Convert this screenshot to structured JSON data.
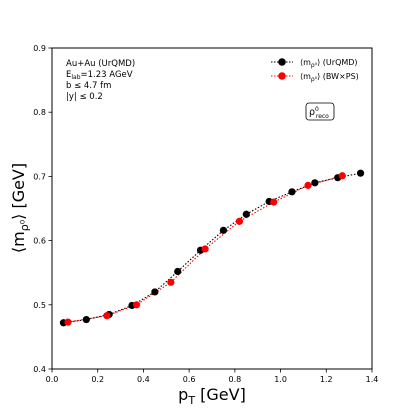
{
  "chart_data": {
    "type": "line",
    "xlabel": "p",
    "xlabel_sub": "T",
    "xlabel_unit": " [GeV]",
    "ylabel": "⟨m",
    "ylabel_sub": "ρ⁰",
    "ylabel_unit": "⟩ [GeV]",
    "xlim": [
      0.0,
      1.4
    ],
    "ylim": [
      0.4,
      0.9
    ],
    "xticks": [
      "0.0",
      "0.2",
      "0.4",
      "0.6",
      "0.8",
      "1.0",
      "1.2",
      "1.4"
    ],
    "yticks": [
      "0.4",
      "0.5",
      "0.6",
      "0.7",
      "0.8",
      "0.9"
    ],
    "grid": false,
    "legend_position": "top-right",
    "annotations": {
      "system": "Au+Au (UrQMD)",
      "elab_prefix": "E",
      "elab_sub": "lab",
      "elab_value": "=1.23 AGeV",
      "impact": "b ≤ 4.7 fm",
      "rapidity": "|y| ≤ 0.2",
      "tag": "ρ",
      "tag_sup": "0",
      "tag_sub": "reco"
    },
    "series": [
      {
        "name": "⟨m",
        "name_sub": "ρ⁰",
        "name_rest": "⟩ (UrQMD)",
        "color": "#000000",
        "x": [
          0.05,
          0.15,
          0.25,
          0.35,
          0.45,
          0.55,
          0.65,
          0.75,
          0.85,
          0.95,
          1.05,
          1.15,
          1.25,
          1.35
        ],
        "y": [
          0.472,
          0.477,
          0.485,
          0.499,
          0.52,
          0.552,
          0.585,
          0.616,
          0.641,
          0.661,
          0.676,
          0.69,
          0.698,
          0.705
        ]
      },
      {
        "name": "⟨m",
        "name_sub": "ρ⁰",
        "name_rest": "⟩ (BW×PS)",
        "color": "#ff0000",
        "x": [
          0.07,
          0.24,
          0.37,
          0.52,
          0.67,
          0.82,
          0.97,
          1.12,
          1.27
        ],
        "y": [
          0.473,
          0.483,
          0.5,
          0.535,
          0.587,
          0.63,
          0.66,
          0.686,
          0.701
        ]
      }
    ]
  }
}
